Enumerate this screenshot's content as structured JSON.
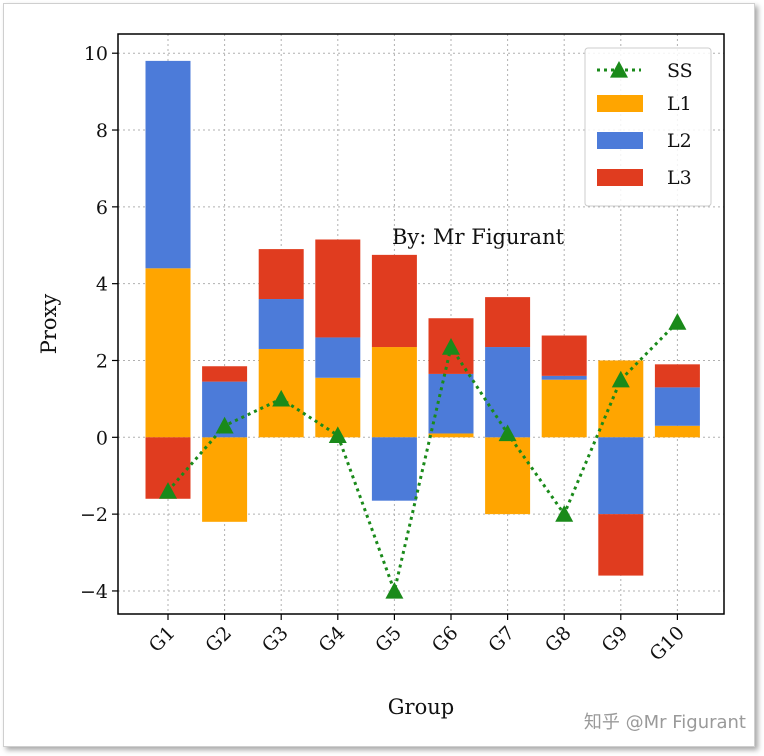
{
  "chart_data": {
    "type": "bar",
    "categories": [
      "G1",
      "G2",
      "G3",
      "G4",
      "G5",
      "G6",
      "G7",
      "G8",
      "G9",
      "G10"
    ],
    "xlabel": "Group",
    "ylabel": "Proxy",
    "ylim": [
      -4.6,
      10.5
    ],
    "yticks": [
      -4,
      -2,
      0,
      2,
      4,
      6,
      8,
      10
    ],
    "ytick_labels": [
      "−4",
      "−2",
      "0",
      "2",
      "4",
      "6",
      "8",
      "10"
    ],
    "grid": true,
    "legend_position": "top-right",
    "stacked": true,
    "series": [
      {
        "name": "L1",
        "color": "#FFA500",
        "values": [
          4.4,
          -2.2,
          2.3,
          1.55,
          2.35,
          0.1,
          -2.0,
          1.5,
          2.0,
          0.3
        ]
      },
      {
        "name": "L2",
        "color": "#4C7BD9",
        "values": [
          5.4,
          1.45,
          1.3,
          1.05,
          -1.65,
          1.55,
          2.35,
          0.1,
          -2.0,
          1.0
        ]
      },
      {
        "name": "L3",
        "color": "#E03C1F",
        "values": [
          -1.6,
          0.4,
          1.3,
          2.55,
          2.4,
          1.45,
          1.3,
          1.05,
          -1.6,
          0.6
        ]
      }
    ],
    "line_series": {
      "name": "SS",
      "color": "#1A8A1A",
      "marker": "triangle",
      "linestyle": "dotted",
      "values": [
        -1.4,
        0.3,
        1.0,
        0.05,
        -4.0,
        2.35,
        0.1,
        -2.0,
        1.5,
        3.0
      ]
    },
    "annotation": "By: Mr Figurant"
  },
  "watermark": "知乎 @Mr Figurant"
}
